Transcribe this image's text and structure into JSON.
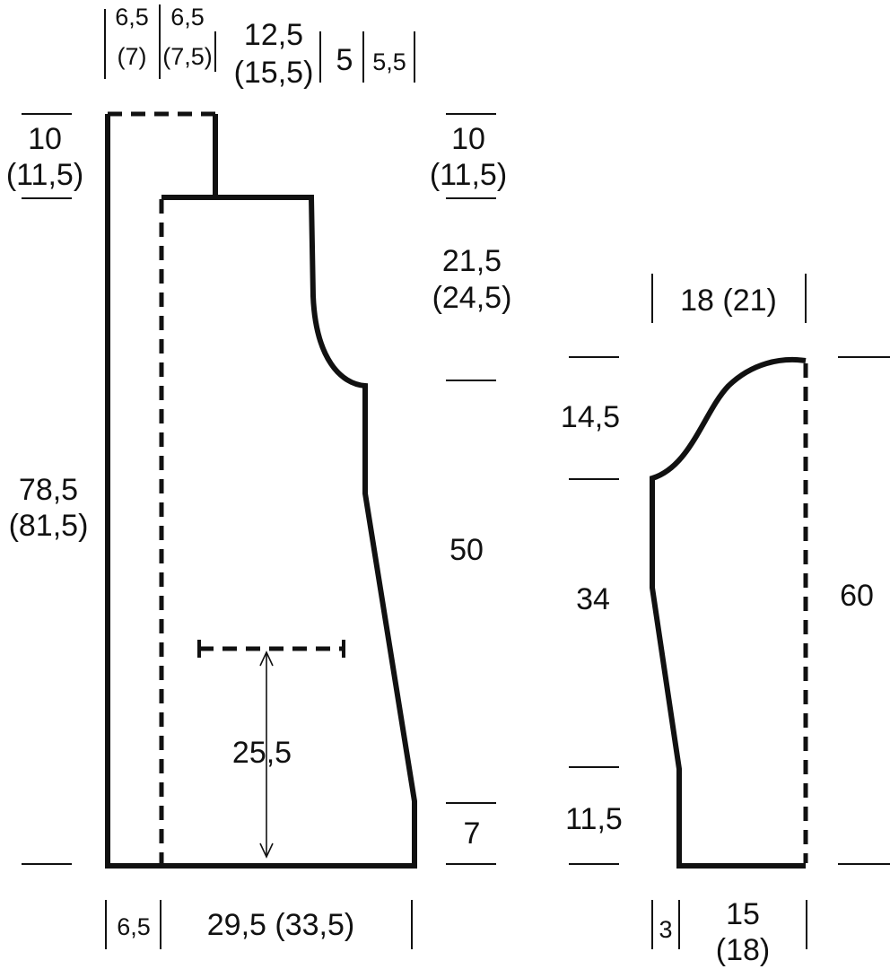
{
  "body_piece": {
    "top_widths": {
      "w1": "6,5",
      "w1_alt": "(7)",
      "w2": "6,5",
      "w2_alt": "(7,5)",
      "w3": "12,5",
      "w3_alt": "(15,5)",
      "w4": "5",
      "w5": "5,5"
    },
    "left_top_height": "10",
    "left_top_height_alt": "(11,5)",
    "right_top_height": "10",
    "right_top_height_alt": "(11,5)",
    "armhole_height": "21,5",
    "armhole_height_alt": "(24,5)",
    "total_height": "78,5",
    "total_height_alt": "(81,5)",
    "side_height": "50",
    "pocket_height": "25,5",
    "hem_height": "7",
    "bottom_left": "6,5",
    "bottom_width": "29,5 (33,5)"
  },
  "sleeve": {
    "top_width": "18 (21)",
    "cap_height": "14,5",
    "mid_height": "34",
    "cuff_height": "11,5",
    "total_height": "60",
    "bottom_left": "3",
    "bottom_width": "15",
    "bottom_width_alt": "(18)"
  }
}
